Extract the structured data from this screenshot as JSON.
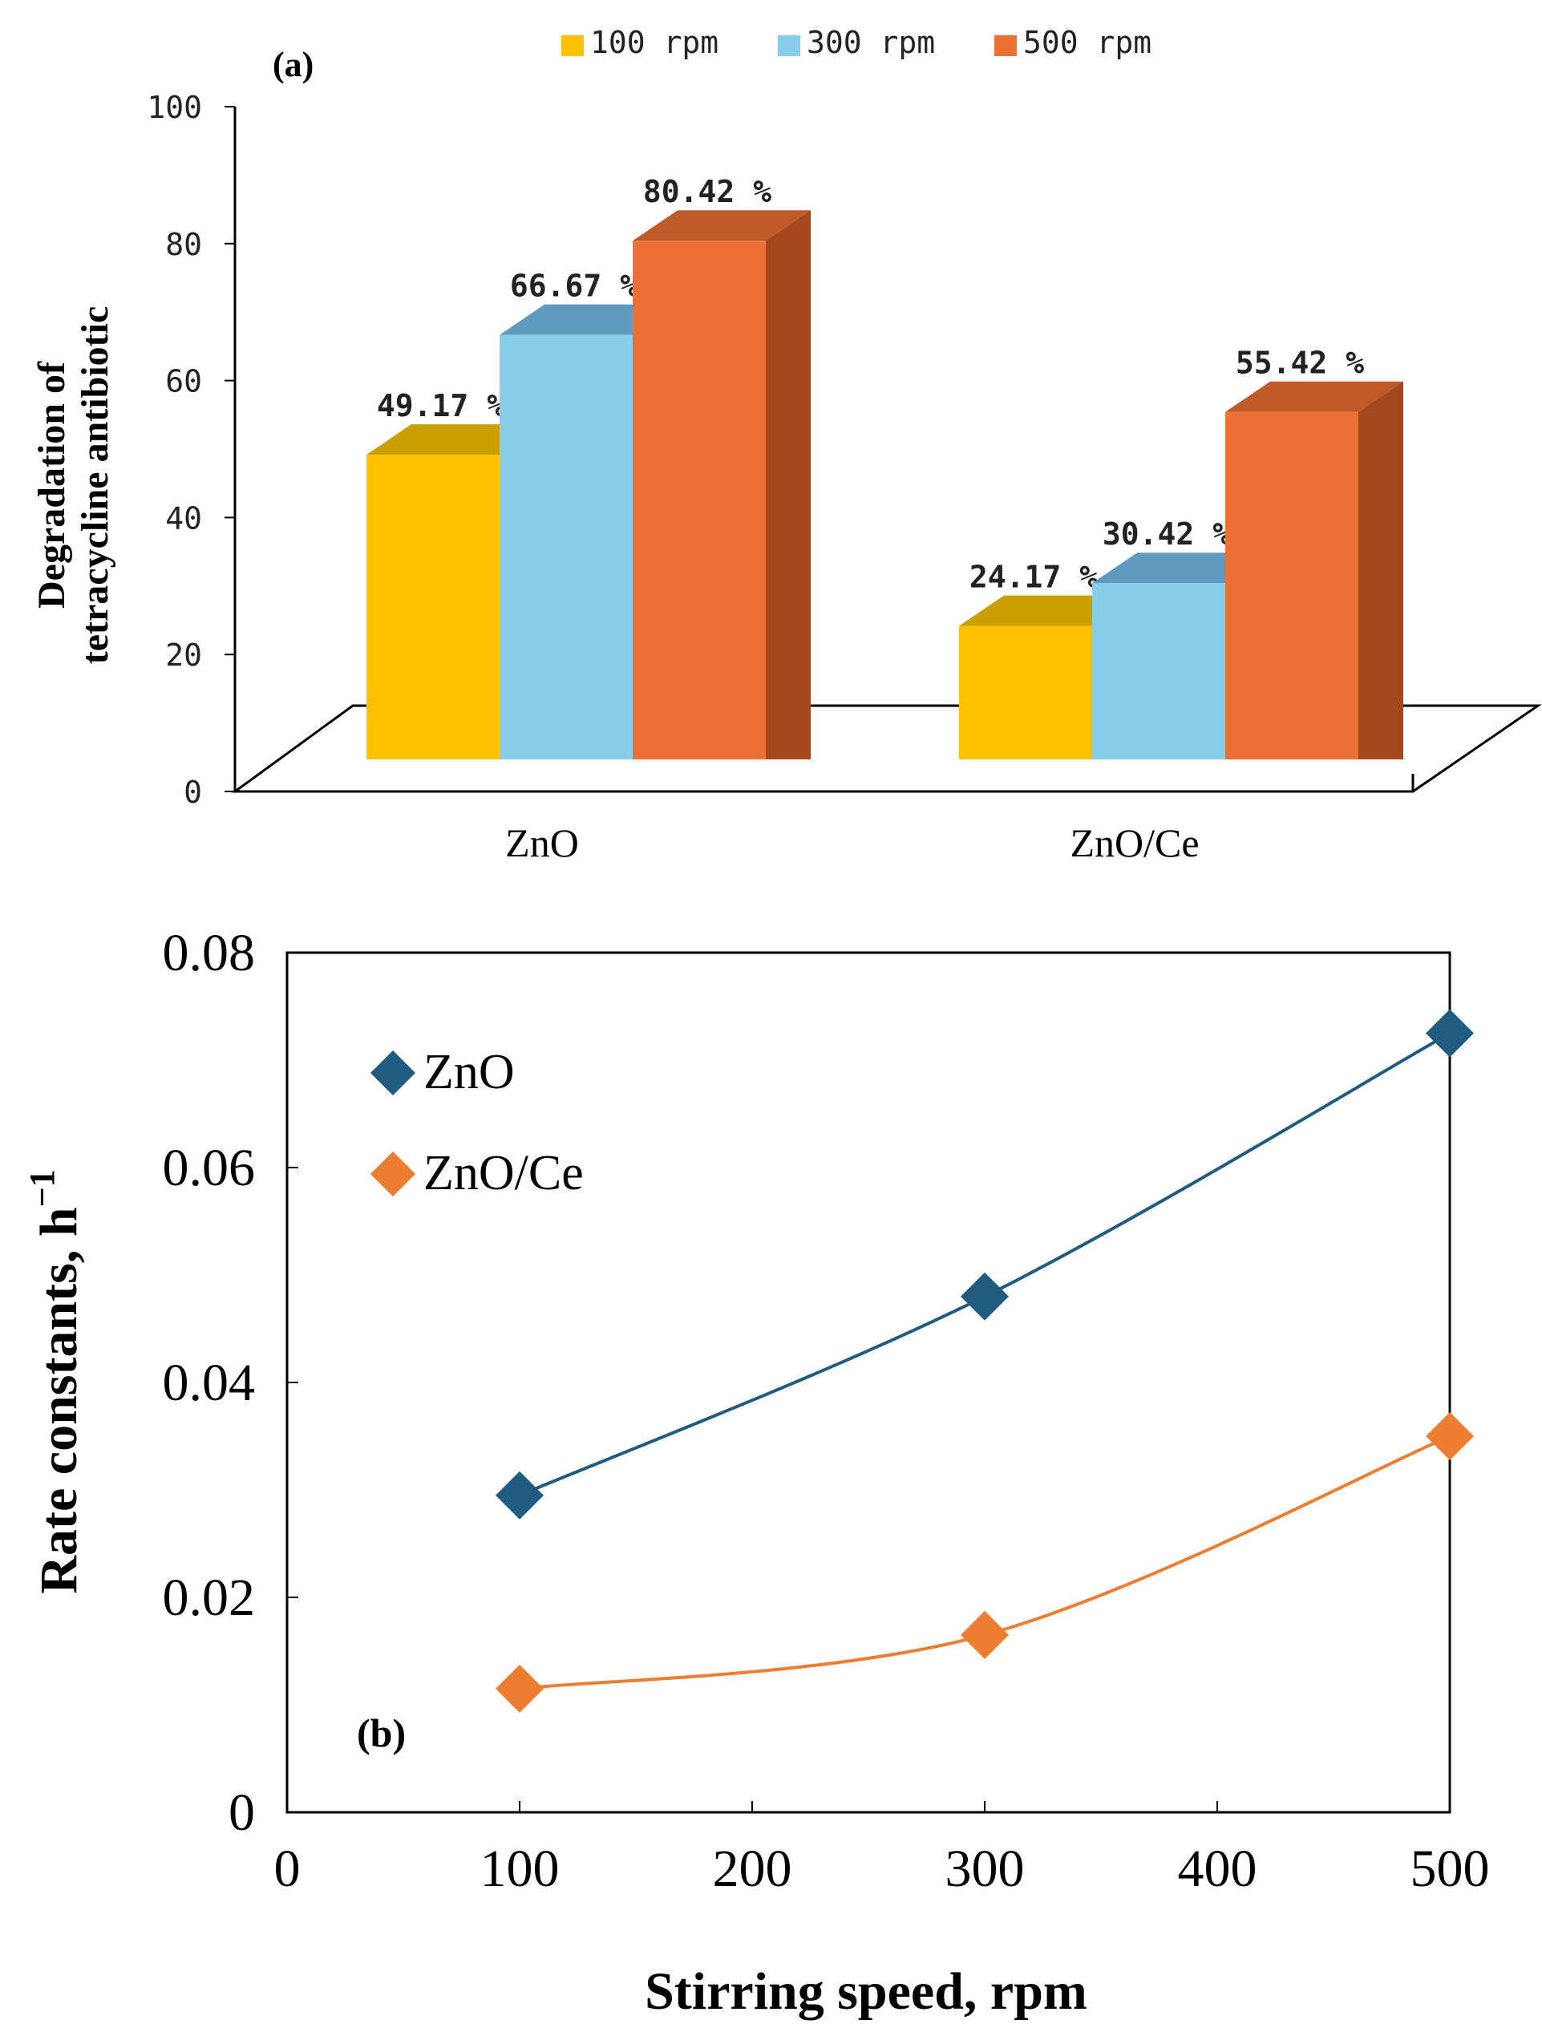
{
  "chart_data": [
    {
      "type": "bar",
      "panel_label": "(a)",
      "title": "",
      "ylabel_lines": [
        "Degradation of",
        "tetracycline antibiotic"
      ],
      "xlabel": "",
      "categories": [
        "ZnO",
        "ZnO/Ce"
      ],
      "series": [
        {
          "name": "100 rpm",
          "values": [
            49.17,
            24.17
          ],
          "labels": [
            "49.17 %",
            "24.17 %"
          ],
          "color": "#FFC000",
          "top": "#C9A000",
          "side": "#B38A00"
        },
        {
          "name": "300 rpm",
          "values": [
            66.67,
            30.42
          ],
          "labels": [
            "66.67 %",
            "30.42 %"
          ],
          "color": "#87CEEB",
          "top": "#5F9BBF",
          "side": "#4F86A8"
        },
        {
          "name": "500 rpm",
          "values": [
            80.42,
            55.42
          ],
          "labels": [
            "80.42 %",
            "55.42 %"
          ],
          "color": "#ED7135",
          "top": "#C05A28",
          "side": "#A5471D"
        }
      ],
      "yticks": [
        0,
        20,
        40,
        60,
        80,
        100
      ],
      "ylim": [
        0,
        100
      ],
      "legend_position": "top"
    },
    {
      "type": "line",
      "panel_label": "(b)",
      "title": "",
      "xlabel": "Stirring speed, rpm",
      "ylabel": "Rate constants, h",
      "ylabel_sup": "−1",
      "x": [
        100,
        300,
        500
      ],
      "series": [
        {
          "name": "ZnO",
          "values": [
            0.0295,
            0.048,
            0.0725
          ],
          "color": "#1F5C80"
        },
        {
          "name": "ZnO/Ce",
          "values": [
            0.0115,
            0.0165,
            0.035
          ],
          "color": "#ED7D31"
        }
      ],
      "xticks": [
        0,
        100,
        200,
        300,
        400,
        500
      ],
      "yticks": [
        "0",
        "0.02",
        "0.04",
        "0.06",
        "0.08"
      ],
      "ytick_values": [
        0,
        0.02,
        0.04,
        0.06,
        0.08
      ],
      "xlim": [
        0,
        500
      ],
      "ylim": [
        0,
        0.08
      ],
      "grid": false,
      "legend_position": "top-left"
    }
  ]
}
